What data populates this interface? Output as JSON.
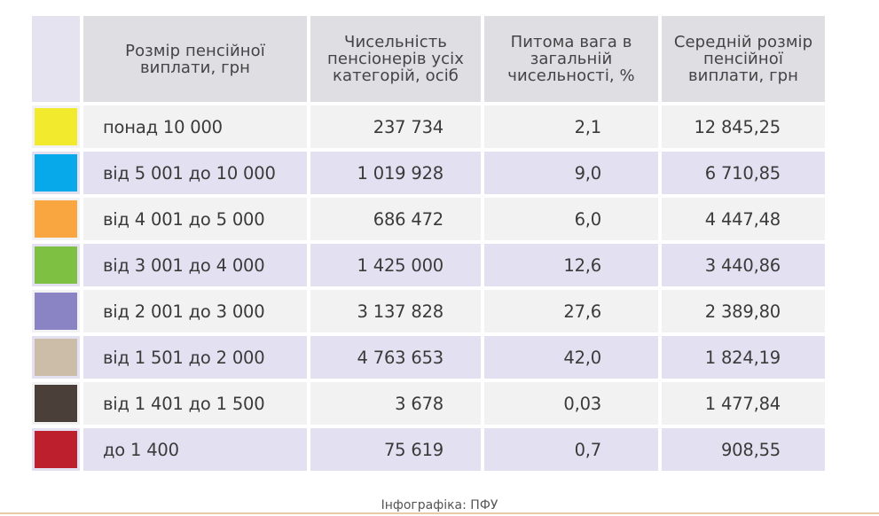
{
  "table": {
    "headers": {
      "range": "Розмір пенсійної виплати, грн",
      "count": "Чисельність пенсіонерів усіх категорій, осіб",
      "share": "Питома вага в загальній чисельності, %",
      "avg": "Середній розмір пенсійної виплати, грн"
    },
    "rows": [
      {
        "color": "#f2ea2c",
        "range": "понад 10 000",
        "count": "237 734",
        "share": "2,1",
        "avg": "12 845,25"
      },
      {
        "color": "#08a9ea",
        "range": "від 5 001 до 10 000",
        "count": "1 019 928",
        "share": "9,0",
        "avg": "6 710,85"
      },
      {
        "color": "#f9a640",
        "range": "від 4 001 до 5 000",
        "count": "686 472",
        "share": "6,0",
        "avg": "4 447,48"
      },
      {
        "color": "#7ec041",
        "range": "від 3 001 до 4 000",
        "count": "1 425 000",
        "share": "12,6",
        "avg": "3 440,86"
      },
      {
        "color": "#8a84c4",
        "range": "від 2 001 до 3 000",
        "count": "3 137 828",
        "share": "27,6",
        "avg": "2 389,80"
      },
      {
        "color": "#cbbda8",
        "range": "від 1 501 до 2 000",
        "count": "4 763 653",
        "share": "42,0",
        "avg": "1 824,19"
      },
      {
        "color": "#4a4039",
        "range": "від 1 401 до 1 500",
        "count": "3 678",
        "share": "0,03",
        "avg": "1 477,84"
      },
      {
        "color": "#be1f2d",
        "range": "до 1 400",
        "count": "75 619",
        "share": "0,7",
        "avg": "908,55"
      }
    ]
  },
  "credit": "Інфографіка: ПФУ"
}
